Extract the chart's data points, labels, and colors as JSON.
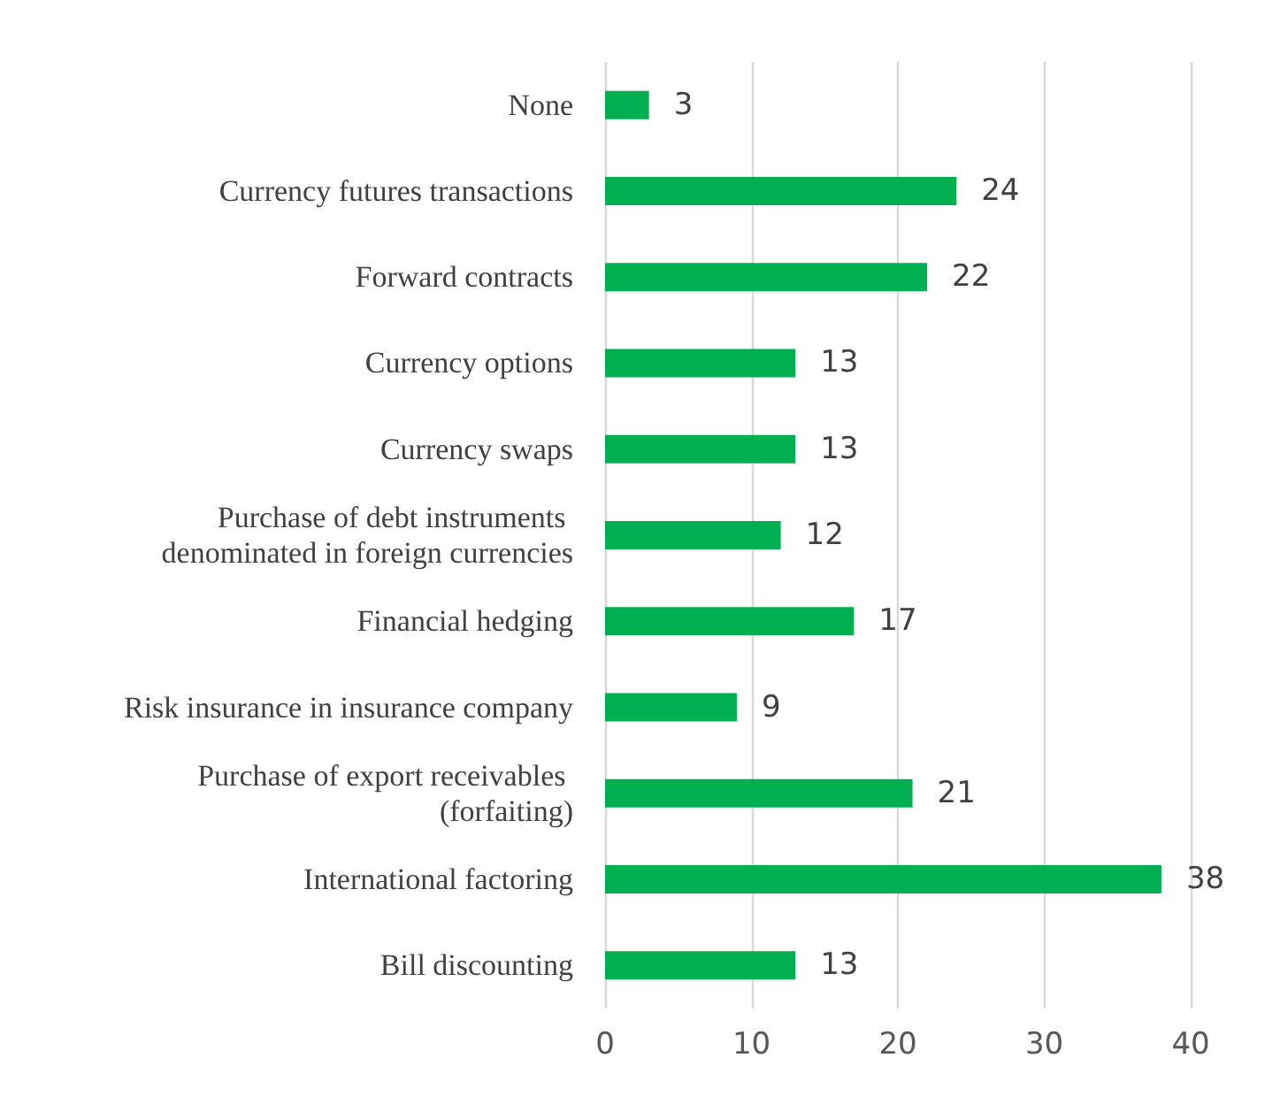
{
  "chart_data": {
    "type": "bar",
    "orientation": "horizontal",
    "categories": [
      "None",
      "Currency futures transactions",
      "Forward contracts",
      "Currency options",
      "Currency swaps",
      "Purchase of debt instruments denominated in foreign currencies",
      "Financial hedging",
      "Risk insurance in insurance company",
      "Purchase of export receivables (forfaiting)",
      "International factoring",
      "Bill discounting"
    ],
    "values": [
      3,
      24,
      22,
      13,
      13,
      12,
      17,
      9,
      21,
      38,
      13
    ],
    "color": "#00b050",
    "xlim": [
      0,
      40
    ],
    "xticks": [
      0,
      10,
      20,
      30,
      40
    ],
    "grid": "x",
    "data_labels": true
  }
}
